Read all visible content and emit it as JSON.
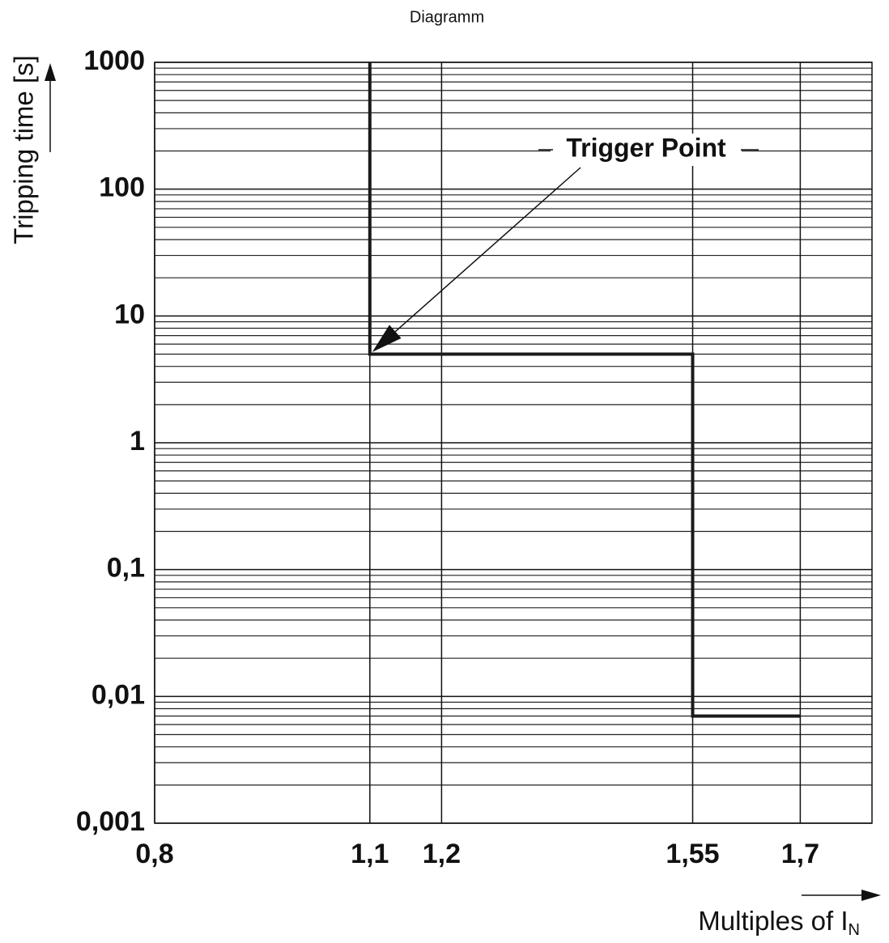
{
  "chart_data": {
    "type": "line",
    "title": "Diagramm",
    "y_label": "Tripping time [s]",
    "x_label": "Multiples of I",
    "x_label_subscript": "N",
    "y_log_scale": true,
    "grid": true,
    "xlim": [
      0.8,
      1.8
    ],
    "ylim": [
      0.001,
      1000
    ],
    "xticks": [
      {
        "value": 0.8,
        "label": "0,8"
      },
      {
        "value": 1.1,
        "label": "1,1"
      },
      {
        "value": 1.2,
        "label": "1,2"
      },
      {
        "value": 1.55,
        "label": "1,55"
      },
      {
        "value": 1.7,
        "label": "1,7"
      }
    ],
    "yticks": [
      {
        "value": 0.001,
        "label": "0,001"
      },
      {
        "value": 0.01,
        "label": "0,01"
      },
      {
        "value": 0.1,
        "label": "0,1"
      },
      1,
      10,
      100,
      1000
    ],
    "minor_yticks": [
      0.002,
      0.003,
      0.004,
      0.005,
      0.006,
      0.007,
      0.008,
      0.009,
      0.02,
      0.03,
      0.04,
      0.05,
      0.06,
      0.07,
      0.08,
      0.09,
      0.2,
      0.3,
      0.4,
      0.5,
      0.6,
      0.7,
      0.8,
      0.9,
      2,
      3,
      4,
      5,
      6,
      7,
      8,
      9,
      20,
      30,
      40,
      50,
      60,
      70,
      80,
      90,
      200,
      300,
      400,
      500,
      600,
      700,
      800,
      900
    ],
    "series": [
      {
        "color": "#1a1a1a",
        "x": [
          1.1,
          1.1,
          1.55,
          1.55,
          1.7
        ],
        "values": [
          1000,
          5,
          5,
          0.007,
          0.007
        ]
      }
    ],
    "annotation": {
      "text": "Trigger Point",
      "x": 1.1,
      "y": 5
    }
  }
}
